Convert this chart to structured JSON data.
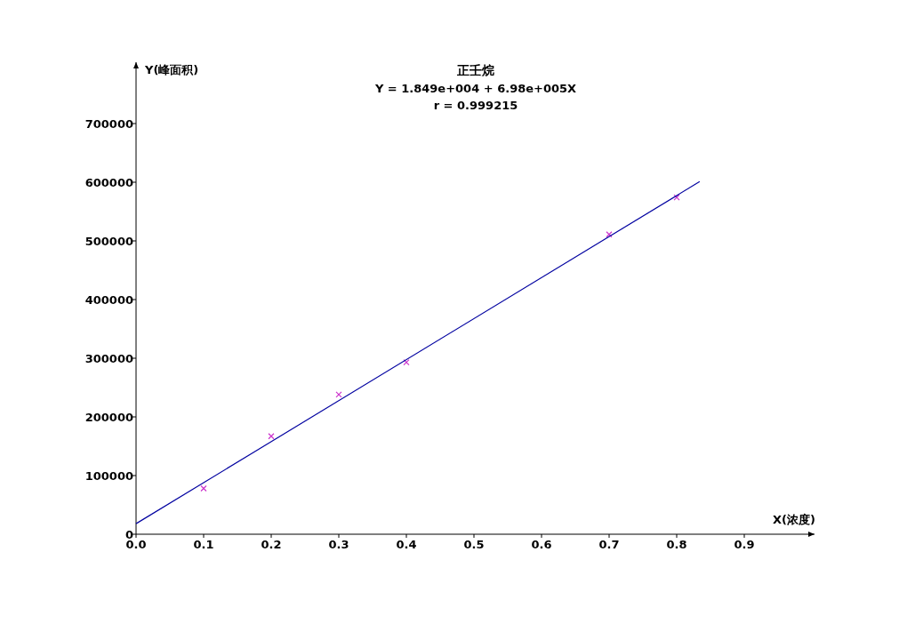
{
  "chart_data": {
    "type": "scatter",
    "title": "正壬烷",
    "subtitle": "Y = 1.849e+004 + 6.98e+005X",
    "annotations": [
      "r = 0.999215"
    ],
    "xlabel": "X(浓度)",
    "ylabel": "Y(峰面积)",
    "xlim": [
      0,
      1.0
    ],
    "ylim": [
      0,
      800000
    ],
    "xticks": [
      {
        "value": 0,
        "label": "0.0"
      },
      {
        "value": 0.1,
        "label": "0.1"
      },
      {
        "value": 0.2,
        "label": "0.2"
      },
      {
        "value": 0.3,
        "label": "0.3"
      },
      {
        "value": 0.4,
        "label": "0.4"
      },
      {
        "value": 0.5,
        "label": "0.5"
      },
      {
        "value": 0.6,
        "label": "0.6"
      },
      {
        "value": 0.7,
        "label": "0.7"
      },
      {
        "value": 0.8,
        "label": "0.8"
      },
      {
        "value": 0.9,
        "label": "0.9"
      }
    ],
    "yticks": [
      0,
      100000,
      200000,
      300000,
      400000,
      500000,
      600000,
      700000
    ],
    "grid": false,
    "marker": "cross",
    "series": [
      {
        "type": "scatter",
        "color": "#cc33cc",
        "x": [
          0.1,
          0.2,
          0.3,
          0.4,
          0.7,
          0.8
        ],
        "values": [
          78000,
          167000,
          238000,
          293000,
          511000,
          574000
        ]
      },
      {
        "type": "line",
        "marker": "none",
        "line_style": "solid",
        "color": "#0000a0",
        "x": [
          0,
          0.834
        ],
        "values": [
          18000,
          601000
        ]
      }
    ]
  }
}
